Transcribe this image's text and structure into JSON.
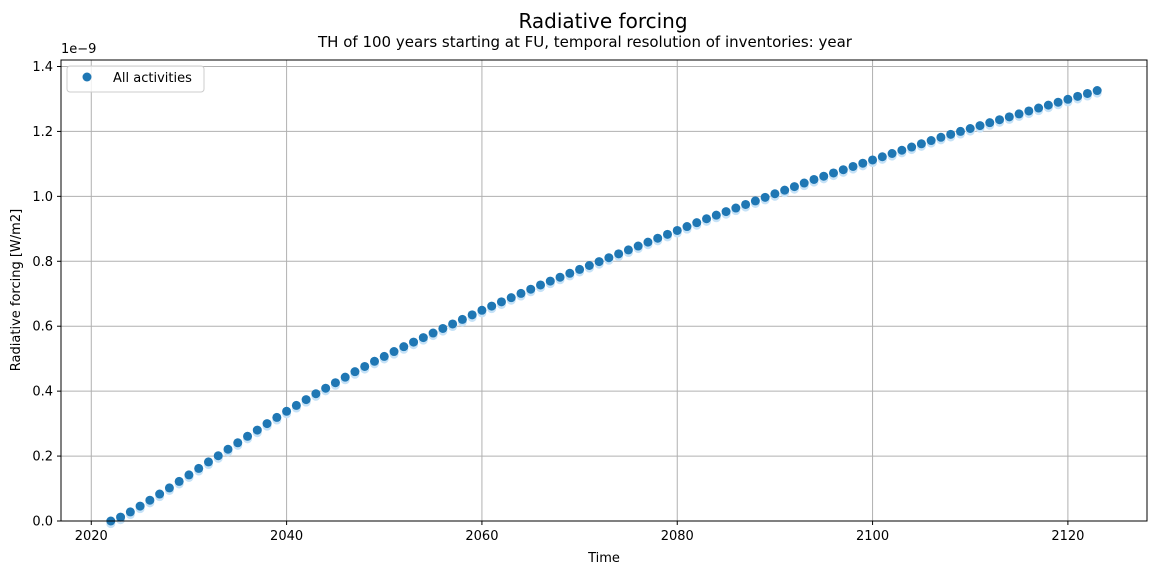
{
  "chart_data": {
    "type": "scatter",
    "title": "Radiative forcing",
    "subtitle": "TH of 100 years starting at FU, temporal resolution of inventories: year",
    "xlabel": "Time",
    "ylabel": "Radiative forcing [W/m2]",
    "y_offset_label": "1e−9",
    "xlim": [
      2016.9,
      2128.1
    ],
    "ylim": [
      0,
      1.42
    ],
    "xticks": [
      2020,
      2040,
      2060,
      2080,
      2100,
      2120
    ],
    "yticks": [
      0.0,
      0.2,
      0.4,
      0.6,
      0.8,
      1.0,
      1.2,
      1.4
    ],
    "ytick_labels": [
      "0.0",
      "0.2",
      "0.4",
      "0.6",
      "0.8",
      "1.0",
      "1.2",
      "1.4"
    ],
    "grid": true,
    "legend_placement": "upper-left",
    "series": [
      {
        "name": "All activities",
        "color": "#1f77b4",
        "x": [
          2022,
          2023,
          2024,
          2025,
          2026,
          2027,
          2028,
          2029,
          2030,
          2031,
          2032,
          2033,
          2034,
          2035,
          2036,
          2037,
          2038,
          2039,
          2040,
          2041,
          2042,
          2043,
          2044,
          2045,
          2046,
          2047,
          2048,
          2049,
          2050,
          2051,
          2052,
          2053,
          2054,
          2055,
          2056,
          2057,
          2058,
          2059,
          2060,
          2061,
          2062,
          2063,
          2064,
          2065,
          2066,
          2067,
          2068,
          2069,
          2070,
          2071,
          2072,
          2073,
          2074,
          2075,
          2076,
          2077,
          2078,
          2079,
          2080,
          2081,
          2082,
          2083,
          2084,
          2085,
          2086,
          2087,
          2088,
          2089,
          2090,
          2091,
          2092,
          2093,
          2094,
          2095,
          2096,
          2097,
          2098,
          2099,
          2100,
          2101,
          2102,
          2103,
          2104,
          2105,
          2106,
          2107,
          2108,
          2109,
          2110,
          2111,
          2112,
          2113,
          2114,
          2115,
          2116,
          2117,
          2118,
          2119,
          2120,
          2121,
          2122,
          2123
        ],
        "values": [
          0.0,
          0.012,
          0.028,
          0.046,
          0.064,
          0.083,
          0.102,
          0.122,
          0.142,
          0.162,
          0.182,
          0.201,
          0.221,
          0.241,
          0.261,
          0.28,
          0.3,
          0.319,
          0.338,
          0.356,
          0.374,
          0.392,
          0.409,
          0.426,
          0.443,
          0.46,
          0.476,
          0.492,
          0.507,
          0.522,
          0.537,
          0.551,
          0.565,
          0.579,
          0.593,
          0.607,
          0.621,
          0.635,
          0.649,
          0.662,
          0.675,
          0.688,
          0.701,
          0.714,
          0.727,
          0.739,
          0.751,
          0.763,
          0.775,
          0.787,
          0.799,
          0.811,
          0.823,
          0.835,
          0.847,
          0.859,
          0.871,
          0.883,
          0.895,
          0.907,
          0.919,
          0.931,
          0.942,
          0.953,
          0.964,
          0.975,
          0.986,
          0.997,
          1.008,
          1.019,
          1.03,
          1.041,
          1.052,
          1.062,
          1.072,
          1.082,
          1.092,
          1.102,
          1.112,
          1.122,
          1.132,
          1.142,
          1.152,
          1.162,
          1.172,
          1.182,
          1.191,
          1.2,
          1.209,
          1.218,
          1.227,
          1.236,
          1.245,
          1.254,
          1.263,
          1.272,
          1.281,
          1.29,
          1.299,
          1.308,
          1.317,
          1.326
        ]
      }
    ]
  }
}
